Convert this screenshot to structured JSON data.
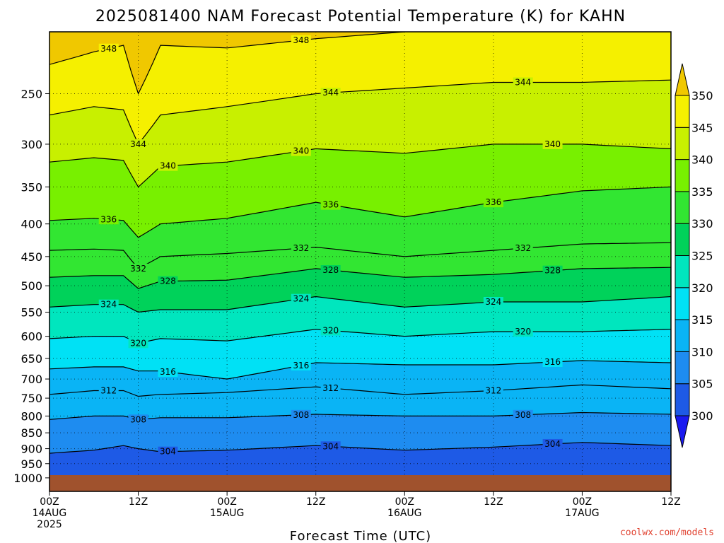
{
  "chart_data": {
    "type": "heatmap",
    "title": "2025081400 NAM Forecast Potential Temperature (K) for KAHN",
    "xlabel": "Forecast Time (UTC)",
    "ylabel": "",
    "x_unit": "forecast hour",
    "x_range": [
      0,
      84
    ],
    "y_unit": "hPa",
    "y_range": [
      1050,
      200
    ],
    "y_scale": "log",
    "y_ticks": [
      250,
      300,
      350,
      400,
      450,
      500,
      550,
      600,
      650,
      700,
      750,
      800,
      850,
      900,
      950,
      1000
    ],
    "x_ticks": [
      {
        "hour": 0,
        "lines": [
          "00Z",
          "14AUG",
          "2025"
        ]
      },
      {
        "hour": 12,
        "lines": [
          "12Z"
        ]
      },
      {
        "hour": 24,
        "lines": [
          "00Z",
          "15AUG"
        ]
      },
      {
        "hour": 36,
        "lines": [
          "12Z"
        ]
      },
      {
        "hour": 48,
        "lines": [
          "00Z",
          "16AUG"
        ]
      },
      {
        "hour": 60,
        "lines": [
          "12Z"
        ]
      },
      {
        "hour": 72,
        "lines": [
          "00Z",
          "17AUG"
        ]
      },
      {
        "hour": 84,
        "lines": [
          "12Z"
        ]
      }
    ],
    "grid": true,
    "colorbar": {
      "levels": [
        300,
        305,
        310,
        315,
        320,
        325,
        330,
        335,
        340,
        345,
        350
      ],
      "colors": [
        "#1a1af0",
        "#1e5ae6",
        "#1e8cf0",
        "#0ab4f5",
        "#00e1f5",
        "#00e6be",
        "#00d25a",
        "#32e632",
        "#78f000",
        "#c8f000",
        "#f5f000",
        "#f0c800"
      ]
    },
    "isentropes": [
      {
        "theta": 348,
        "points": [
          [
            0,
            225
          ],
          [
            6,
            215
          ],
          [
            10,
            210
          ],
          [
            12,
            250
          ],
          [
            15,
            210
          ],
          [
            24,
            212
          ],
          [
            36,
            205
          ],
          [
            48,
            200
          ],
          [
            60,
            192
          ],
          [
            72,
            190
          ],
          [
            84,
            192
          ]
        ]
      },
      {
        "theta": 344,
        "points": [
          [
            0,
            270
          ],
          [
            6,
            262
          ],
          [
            10,
            265
          ],
          [
            12,
            300
          ],
          [
            15,
            270
          ],
          [
            24,
            262
          ],
          [
            36,
            250
          ],
          [
            48,
            245
          ],
          [
            60,
            240
          ],
          [
            72,
            240
          ],
          [
            84,
            238
          ]
        ]
      },
      {
        "theta": 340,
        "points": [
          [
            0,
            320
          ],
          [
            6,
            315
          ],
          [
            10,
            318
          ],
          [
            12,
            350
          ],
          [
            15,
            325
          ],
          [
            24,
            320
          ],
          [
            36,
            305
          ],
          [
            48,
            310
          ],
          [
            60,
            300
          ],
          [
            72,
            300
          ],
          [
            84,
            305
          ]
        ]
      },
      {
        "theta": 336,
        "points": [
          [
            0,
            395
          ],
          [
            6,
            392
          ],
          [
            10,
            395
          ],
          [
            12,
            420
          ],
          [
            15,
            400
          ],
          [
            24,
            392
          ],
          [
            36,
            370
          ],
          [
            48,
            390
          ],
          [
            60,
            370
          ],
          [
            72,
            355
          ],
          [
            84,
            350
          ]
        ]
      },
      {
        "theta": 332,
        "points": [
          [
            0,
            440
          ],
          [
            6,
            438
          ],
          [
            10,
            440
          ],
          [
            12,
            470
          ],
          [
            15,
            450
          ],
          [
            24,
            445
          ],
          [
            36,
            435
          ],
          [
            48,
            450
          ],
          [
            60,
            440
          ],
          [
            72,
            430
          ],
          [
            84,
            428
          ]
        ]
      },
      {
        "theta": 328,
        "points": [
          [
            0,
            485
          ],
          [
            6,
            482
          ],
          [
            10,
            482
          ],
          [
            12,
            505
          ],
          [
            15,
            492
          ],
          [
            24,
            490
          ],
          [
            36,
            470
          ],
          [
            48,
            485
          ],
          [
            60,
            480
          ],
          [
            72,
            470
          ],
          [
            84,
            468
          ]
        ]
      },
      {
        "theta": 324,
        "points": [
          [
            0,
            540
          ],
          [
            6,
            535
          ],
          [
            10,
            535
          ],
          [
            12,
            550
          ],
          [
            15,
            545
          ],
          [
            24,
            545
          ],
          [
            36,
            520
          ],
          [
            48,
            540
          ],
          [
            60,
            530
          ],
          [
            72,
            530
          ],
          [
            84,
            520
          ]
        ]
      },
      {
        "theta": 320,
        "points": [
          [
            0,
            605
          ],
          [
            6,
            600
          ],
          [
            10,
            600
          ],
          [
            12,
            615
          ],
          [
            15,
            605
          ],
          [
            24,
            610
          ],
          [
            36,
            585
          ],
          [
            48,
            600
          ],
          [
            60,
            590
          ],
          [
            72,
            590
          ],
          [
            84,
            585
          ]
        ]
      },
      {
        "theta": 316,
        "points": [
          [
            0,
            675
          ],
          [
            6,
            670
          ],
          [
            10,
            670
          ],
          [
            12,
            680
          ],
          [
            15,
            680
          ],
          [
            24,
            700
          ],
          [
            36,
            660
          ],
          [
            48,
            665
          ],
          [
            60,
            665
          ],
          [
            72,
            655
          ],
          [
            84,
            660
          ]
        ]
      },
      {
        "theta": 312,
        "points": [
          [
            0,
            740
          ],
          [
            6,
            730
          ],
          [
            10,
            730
          ],
          [
            12,
            745
          ],
          [
            15,
            740
          ],
          [
            24,
            735
          ],
          [
            36,
            720
          ],
          [
            48,
            740
          ],
          [
            60,
            730
          ],
          [
            72,
            715
          ],
          [
            84,
            725
          ]
        ]
      },
      {
        "theta": 308,
        "points": [
          [
            0,
            810
          ],
          [
            6,
            800
          ],
          [
            10,
            800
          ],
          [
            12,
            810
          ],
          [
            15,
            805
          ],
          [
            24,
            805
          ],
          [
            36,
            795
          ],
          [
            48,
            800
          ],
          [
            60,
            800
          ],
          [
            72,
            790
          ],
          [
            84,
            795
          ]
        ]
      },
      {
        "theta": 304,
        "points": [
          [
            0,
            915
          ],
          [
            6,
            905
          ],
          [
            10,
            890
          ],
          [
            12,
            900
          ],
          [
            15,
            910
          ],
          [
            24,
            905
          ],
          [
            36,
            890
          ],
          [
            48,
            905
          ],
          [
            60,
            895
          ],
          [
            72,
            880
          ],
          [
            84,
            890
          ]
        ]
      }
    ]
  },
  "labels": {
    "credit": "coolwx.com/models"
  }
}
